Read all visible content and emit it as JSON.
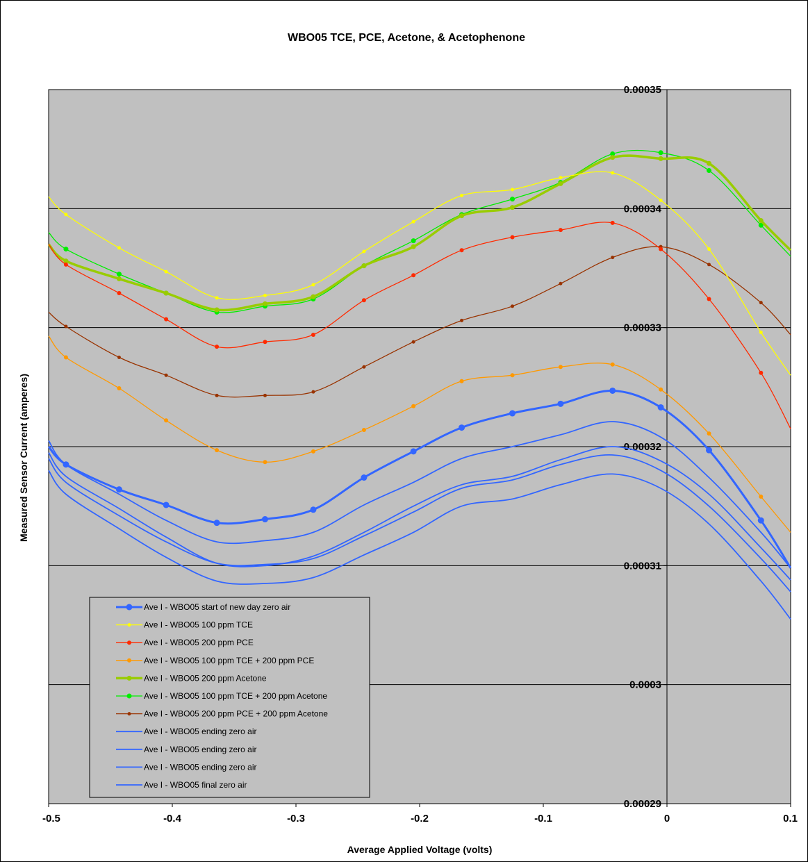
{
  "chart_data": {
    "type": "line",
    "title": "WBO05 TCE, PCE, Acetone, & Acetophenone",
    "xlabel": "Average Applied Voltage (volts)",
    "ylabel": "Measured Sensor Current (amperes)",
    "xlim": [
      -0.5,
      0.1
    ],
    "ylim": [
      0.00029,
      0.00035
    ],
    "xticks": [
      -0.5,
      -0.4,
      -0.3,
      -0.2,
      -0.1,
      0,
      0.1
    ],
    "xtick_labels": [
      "-0.5",
      "-0.4",
      "-0.3",
      "-0.2",
      "-0.1",
      "0",
      "0.1"
    ],
    "yticks": [
      0.00029,
      0.0003,
      0.00031,
      0.00032,
      0.00033,
      0.00034,
      0.00035
    ],
    "ytick_labels": [
      "0.00029",
      "0.0003",
      "0.00031",
      "0.00032",
      "0.00033",
      "0.00034",
      "0.00035"
    ],
    "grid": "horizontal",
    "y_axis_crosses_at_x": 0,
    "plot_background": "#c0c0c0",
    "legend_position": "bottom-left",
    "x": [
      -0.5,
      -0.486,
      -0.443,
      -0.405,
      -0.364,
      -0.325,
      -0.286,
      -0.245,
      -0.205,
      -0.166,
      -0.125,
      -0.086,
      -0.044,
      -0.005,
      0.034,
      0.076,
      0.1
    ],
    "series": [
      {
        "name": "Ave I - WBO05 start of new  day zero air",
        "color": "#3366ff",
        "width": 3,
        "marker": "circle",
        "marker_size": 4.5,
        "values": [
          0.00032,
          0.0003185,
          0.0003164,
          0.0003151,
          0.0003136,
          0.0003139,
          0.0003147,
          0.0003174,
          0.0003196,
          0.0003216,
          0.0003228,
          0.0003236,
          0.0003247,
          0.0003233,
          0.0003197,
          0.0003138,
          0.0003098
        ]
      },
      {
        "name": "Ave I - WBO05 100 ppm TCE",
        "color": "#ffff00",
        "width": 1.3,
        "marker": "circle",
        "marker_size": 2.5,
        "values": [
          0.000341,
          0.0003395,
          0.0003367,
          0.0003347,
          0.0003325,
          0.0003327,
          0.0003336,
          0.0003364,
          0.0003389,
          0.0003411,
          0.0003416,
          0.0003426,
          0.000343,
          0.0003407,
          0.0003366,
          0.0003296,
          0.000326
        ]
      },
      {
        "name": "Ave I - WBO05 200 ppm PCE",
        "color": "#ff2a00",
        "width": 1.3,
        "marker": "circle",
        "marker_size": 3,
        "values": [
          0.000337,
          0.0003353,
          0.0003329,
          0.0003307,
          0.0003284,
          0.0003288,
          0.0003294,
          0.0003323,
          0.0003344,
          0.0003365,
          0.0003376,
          0.0003382,
          0.0003388,
          0.0003366,
          0.0003324,
          0.0003262,
          0.0003215
        ]
      },
      {
        "name": "Ave I - WBO05 100 ppm TCE + 200 ppm PCE",
        "color": "#ff9900",
        "width": 1.3,
        "marker": "circle",
        "marker_size": 3,
        "values": [
          0.0003293,
          0.0003275,
          0.0003249,
          0.0003222,
          0.0003197,
          0.0003187,
          0.0003196,
          0.0003214,
          0.0003234,
          0.0003255,
          0.000326,
          0.0003267,
          0.0003269,
          0.0003248,
          0.0003211,
          0.0003158,
          0.0003128
        ]
      },
      {
        "name": "Ave I - WBO05 200 ppm Acetone",
        "color": "#99cc00",
        "width": 3.5,
        "marker": "circle",
        "marker_size": 3.5,
        "values": [
          0.000337,
          0.0003356,
          0.0003341,
          0.0003329,
          0.0003315,
          0.000332,
          0.0003326,
          0.0003352,
          0.0003368,
          0.0003394,
          0.0003401,
          0.0003421,
          0.0003443,
          0.0003442,
          0.0003438,
          0.000339,
          0.0003365
        ]
      },
      {
        "name": "Ave I - WBO05 100 ppm TCE + 200 ppm Acetone",
        "color": "#00ee00",
        "width": 1.3,
        "marker": "circle",
        "marker_size": 3.5,
        "values": [
          0.000338,
          0.0003366,
          0.0003345,
          0.0003329,
          0.0003313,
          0.0003318,
          0.0003324,
          0.0003352,
          0.0003373,
          0.0003395,
          0.0003408,
          0.0003422,
          0.0003446,
          0.0003447,
          0.0003432,
          0.0003386,
          0.000336
        ]
      },
      {
        "name": "Ave I - WBO05 200 ppm PCE + 200 ppm Acetone",
        "color": "#993300",
        "width": 1.3,
        "marker": "circle",
        "marker_size": 2.5,
        "values": [
          0.0003313,
          0.0003301,
          0.0003275,
          0.000326,
          0.0003243,
          0.0003243,
          0.0003246,
          0.0003267,
          0.0003288,
          0.0003306,
          0.0003318,
          0.0003337,
          0.0003359,
          0.0003368,
          0.0003353,
          0.0003321,
          0.0003294
        ]
      },
      {
        "name": "Ave I - WBO05 ending zero air",
        "color": "#3366ff",
        "width": 1.8,
        "marker": "none",
        "values": [
          0.0003205,
          0.0003185,
          0.000316,
          0.0003138,
          0.000312,
          0.0003121,
          0.0003128,
          0.0003151,
          0.000317,
          0.000319,
          0.00032,
          0.000321,
          0.0003221,
          0.0003208,
          0.0003174,
          0.0003128,
          0.0003098
        ]
      },
      {
        "name": "Ave I - WBO05 ending zero air",
        "color": "#3366ff",
        "width": 1.8,
        "marker": "none",
        "values": [
          0.0003195,
          0.0003175,
          0.0003148,
          0.0003124,
          0.0003102,
          0.00031,
          0.0003108,
          0.0003128,
          0.000315,
          0.0003168,
          0.0003175,
          0.0003189,
          0.00032,
          0.0003188,
          0.000316,
          0.0003115,
          0.0003088
        ]
      },
      {
        "name": "Ave I - WBO05 ending zero air",
        "color": "#3366ff",
        "width": 1.8,
        "marker": "none",
        "values": [
          0.000319,
          0.000317,
          0.0003142,
          0.000312,
          0.0003102,
          0.0003101,
          0.0003106,
          0.0003125,
          0.0003145,
          0.0003165,
          0.0003172,
          0.0003185,
          0.0003193,
          0.000318,
          0.000315,
          0.0003106,
          0.0003078
        ]
      },
      {
        "name": "Ave I - WBO05 final zero air",
        "color": "#3366ff",
        "width": 1.8,
        "marker": "none",
        "values": [
          0.000318,
          0.000316,
          0.0003131,
          0.0003107,
          0.0003087,
          0.0003085,
          0.000309,
          0.0003109,
          0.0003128,
          0.000315,
          0.0003156,
          0.0003168,
          0.0003177,
          0.0003165,
          0.0003135,
          0.0003087,
          0.0003055
        ]
      }
    ]
  }
}
